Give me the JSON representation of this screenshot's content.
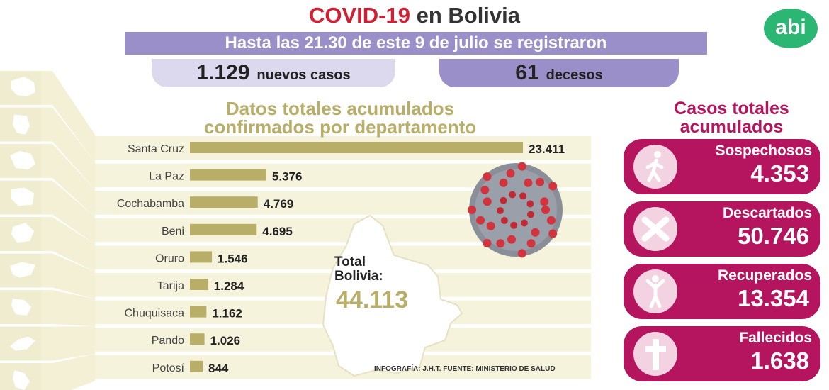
{
  "header": {
    "title_red": "COVID-19",
    "title_rest": "en Bolivia",
    "logo": "abi",
    "subtitle": "Hasta las 21.30 de este 9 de julio se registraron",
    "new_cases_value": "1.129",
    "new_cases_label": "nuevos casos",
    "deaths_value": "61",
    "deaths_label": "decesos"
  },
  "chart_title_line1": "Datos totales acumulados",
  "chart_title_line2": "confirmados por departamento",
  "chart_data": {
    "type": "bar",
    "orientation": "horizontal",
    "categories": [
      "Santa Cruz",
      "La Paz",
      "Cochabamba",
      "Beni",
      "Oruro",
      "Tarija",
      "Chuquisaca",
      "Pando",
      "Potosí"
    ],
    "values": [
      23411,
      5376,
      4769,
      4695,
      1546,
      1284,
      1162,
      1026,
      844
    ],
    "value_labels": [
      "23.411",
      "5.376",
      "4.769",
      "4.695",
      "1.546",
      "1.284",
      "1.162",
      "1.026",
      "844"
    ],
    "bar_color": "#b9ae68"
  },
  "total": {
    "label_line1": "Total",
    "label_line2": "Bolivia:",
    "value": "44.113"
  },
  "accumulated_title_line1": "Casos totales",
  "accumulated_title_line2": "acumulados",
  "cards": [
    {
      "label": "Sospechosos",
      "value": "4.353",
      "icon": "person-walking-icon"
    },
    {
      "label": "Descartados",
      "value": "50.746",
      "icon": "cross-x-icon"
    },
    {
      "label": "Recuperados",
      "value": "13.354",
      "icon": "person-arms-up-icon"
    },
    {
      "label": "Fallecidos",
      "value": "1.638",
      "icon": "cross-icon"
    }
  ],
  "credit": "INFOGRAFÍA: J.H.T. FUENTE: MINISTERIO DE SALUD",
  "colors": {
    "title_red": "#d11f33",
    "purple": "#9a8fc8",
    "light_purple": "#dcd9ee",
    "gold": "#b9ae68",
    "magenta": "#b5155e",
    "abi_green": "#2bb673"
  }
}
